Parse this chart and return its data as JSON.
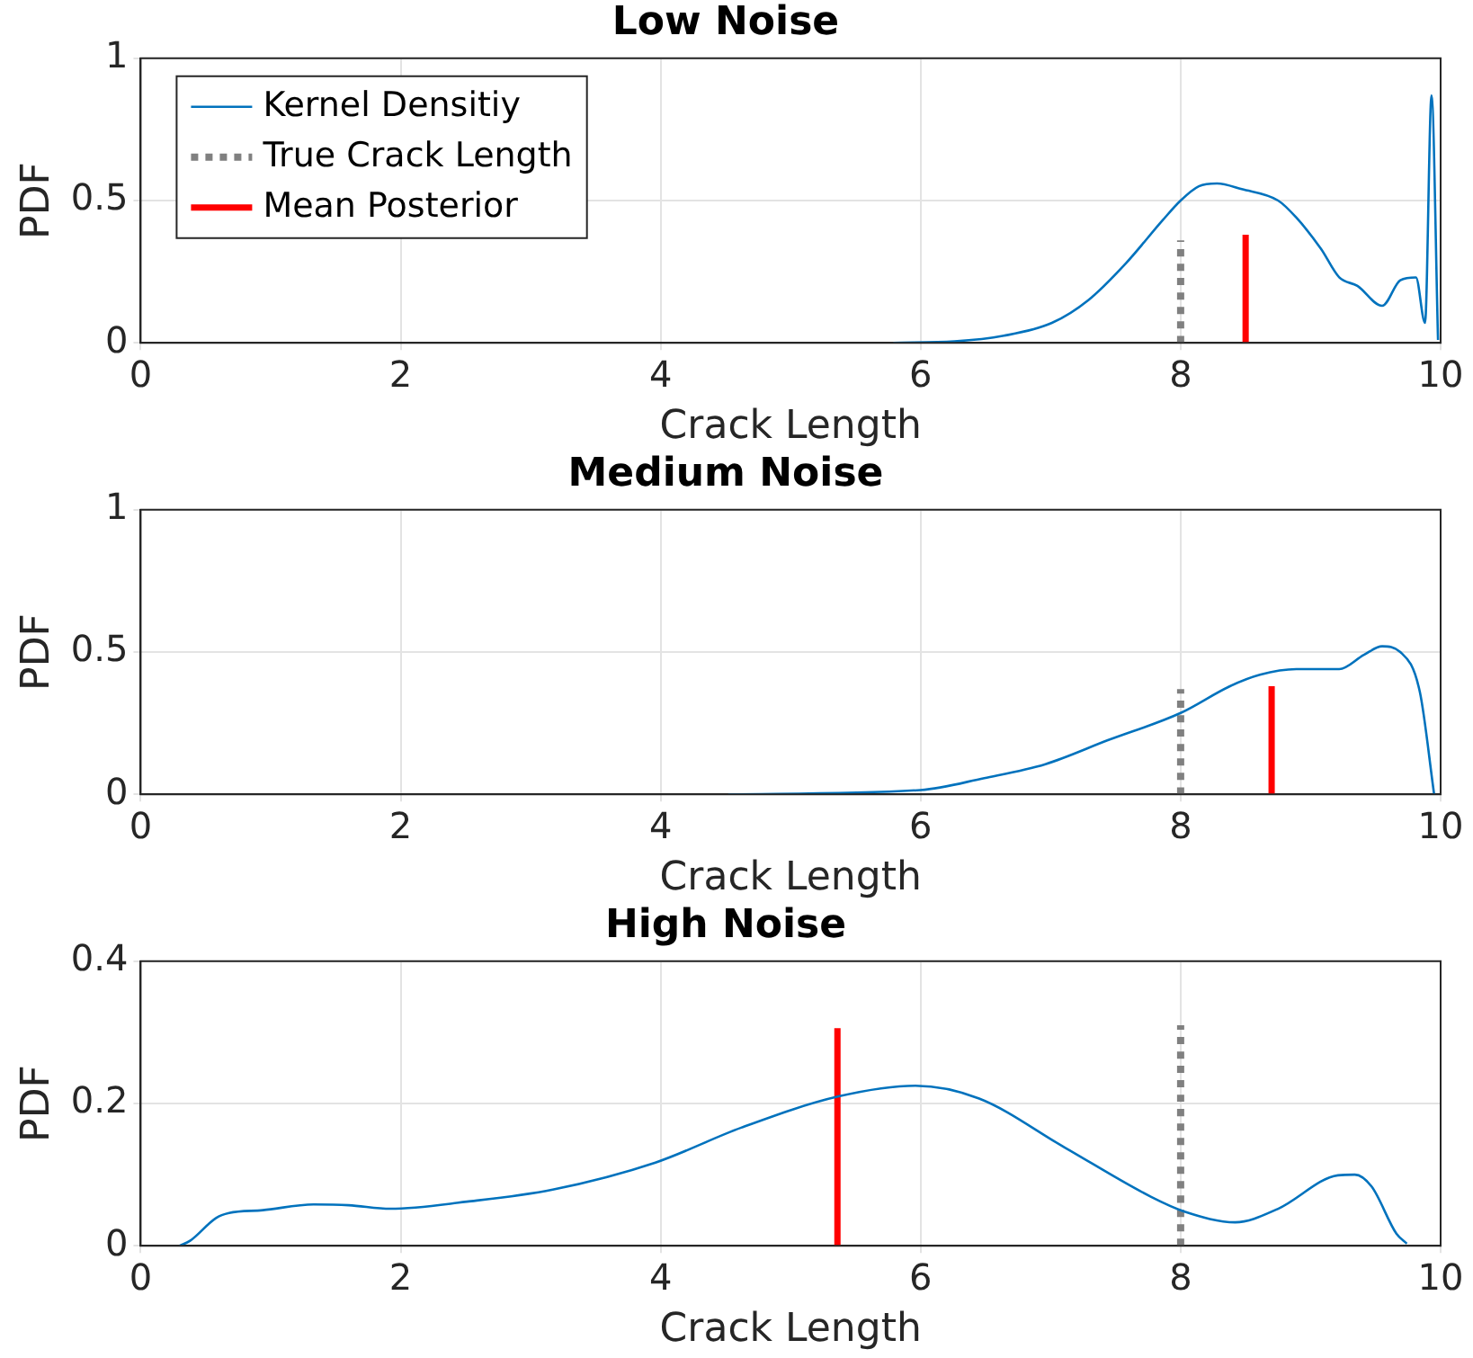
{
  "chart_data": [
    {
      "type": "line",
      "title": "Low Noise",
      "xlabel": "Crack Length",
      "ylabel": "PDF",
      "xlim": [
        0,
        10
      ],
      "xticks": [
        0,
        2,
        4,
        6,
        8,
        10
      ],
      "ylim": [
        0,
        1
      ],
      "yticks": [
        0,
        0.5,
        1
      ],
      "grid": true,
      "legend": "top left",
      "series": [
        {
          "name": "Kernel Densitiy",
          "color": "#0072bd",
          "line_style": "solid",
          "x": [
            5.79,
            6.26,
            6.64,
            7.01,
            7.29,
            7.58,
            7.86,
            8.0,
            8.14,
            8.28,
            8.47,
            8.75,
            8.89,
            9.08,
            9.22,
            9.36,
            9.55,
            9.69,
            9.81,
            9.88,
            9.93,
            9.98
          ],
          "values": [
            0,
            0.005,
            0.025,
            0.07,
            0.15,
            0.28,
            0.43,
            0.5,
            0.55,
            0.56,
            0.54,
            0.5,
            0.44,
            0.33,
            0.23,
            0.2,
            0.13,
            0.22,
            0.23,
            0.07,
            0.87,
            0.01
          ]
        },
        {
          "name": "True Crack Length",
          "color": "#808080",
          "line_style": "dotted",
          "x": [
            8,
            8
          ],
          "values": [
            0,
            0.36
          ]
        },
        {
          "name": "Mean Posterior",
          "color": "#ff0000",
          "line_style": "solid",
          "x": [
            8.5,
            8.5
          ],
          "values": [
            0,
            0.38
          ]
        }
      ]
    },
    {
      "type": "line",
      "title": "Medium Noise",
      "xlabel": "Crack Length",
      "ylabel": "PDF",
      "xlim": [
        0,
        10
      ],
      "xticks": [
        0,
        2,
        4,
        6,
        8,
        10
      ],
      "ylim": [
        0,
        1
      ],
      "yticks": [
        0,
        0.5,
        1
      ],
      "grid": true,
      "series": [
        {
          "color": "#0072bd",
          "line_style": "solid",
          "x": [
            4.52,
            6,
            6.49,
            6.96,
            7.44,
            8,
            8.38,
            8.61,
            8.89,
            9.22,
            9.41,
            9.55,
            9.69,
            9.84,
            9.95
          ],
          "values": [
            0,
            0.015,
            0.057,
            0.106,
            0.19,
            0.286,
            0.38,
            0.42,
            0.44,
            0.44,
            0.49,
            0.52,
            0.5,
            0.36,
            0
          ]
        },
        {
          "color": "#808080",
          "line_style": "dotted",
          "x": [
            8,
            8
          ],
          "values": [
            0,
            0.37
          ]
        },
        {
          "color": "#ff0000",
          "line_style": "solid",
          "x": [
            8.7,
            8.7
          ],
          "values": [
            0,
            0.38
          ]
        }
      ]
    },
    {
      "type": "line",
      "title": "High Noise",
      "xlabel": "Crack Length",
      "ylabel": "PDF",
      "xlim": [
        0,
        10
      ],
      "xticks": [
        0,
        2,
        4,
        6,
        8,
        10
      ],
      "ylim": [
        0,
        0.4
      ],
      "yticks": [
        0,
        0.2,
        0.4
      ],
      "grid": true,
      "series": [
        {
          "color": "#0072bd",
          "line_style": "solid",
          "x": [
            0.3,
            0.38,
            0.58,
            0.68,
            0.94,
            1.33,
            1.6,
            1.92,
            2.51,
            3.17,
            3.96,
            4.62,
            5.37,
            5.96,
            6.45,
            7.11,
            7.77,
            8.03,
            8.42,
            8.75,
            9.21,
            9.34,
            9.47,
            9.66,
            9.74
          ],
          "values": [
            0,
            0.007,
            0.039,
            0.046,
            0.05,
            0.058,
            0.057,
            0.052,
            0.062,
            0.079,
            0.117,
            0.166,
            0.21,
            0.225,
            0.207,
            0.138,
            0.069,
            0.048,
            0.033,
            0.052,
            0.099,
            0.1,
            0.083,
            0.017,
            0.003
          ]
        },
        {
          "color": "#808080",
          "line_style": "dotted",
          "x": [
            8,
            8
          ],
          "values": [
            0,
            0.31
          ]
        },
        {
          "color": "#ff0000",
          "line_style": "solid",
          "x": [
            5.36,
            5.36
          ],
          "values": [
            0,
            0.306
          ]
        }
      ]
    }
  ]
}
